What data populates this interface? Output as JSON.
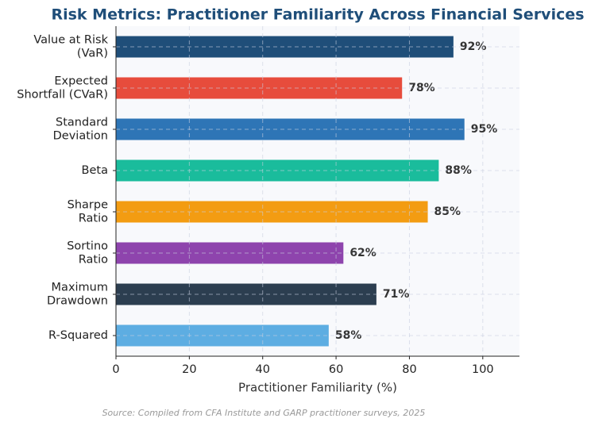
{
  "chart_data": {
    "type": "barh",
    "title": "Risk Metrics: Practitioner Familiarity Across Financial Services",
    "xlabel": "Practitioner Familiarity (%)",
    "source": "Source: Compiled from CFA Institute and GARP practitioner surveys, 2025",
    "categories": [
      "Value at Risk\n(VaR)",
      "Expected\nShortfall (CVaR)",
      "Standard\nDeviation",
      "Beta",
      "Sharpe\nRatio",
      "Sortino\nRatio",
      "Maximum\nDrawdown",
      "R-Squared"
    ],
    "values": [
      92,
      78,
      95,
      88,
      85,
      62,
      71,
      58
    ],
    "value_labels": [
      "92%",
      "78%",
      "95%",
      "88%",
      "85%",
      "62%",
      "71%",
      "58%"
    ],
    "colors": [
      "#1f4e79",
      "#e74c3c",
      "#2e75b6",
      "#1abc9c",
      "#f39c12",
      "#8e44ad",
      "#2c3e50",
      "#5dade2"
    ],
    "xlim": [
      0,
      110
    ],
    "xticks": [
      0,
      20,
      40,
      60,
      80,
      100
    ],
    "grid": true
  }
}
